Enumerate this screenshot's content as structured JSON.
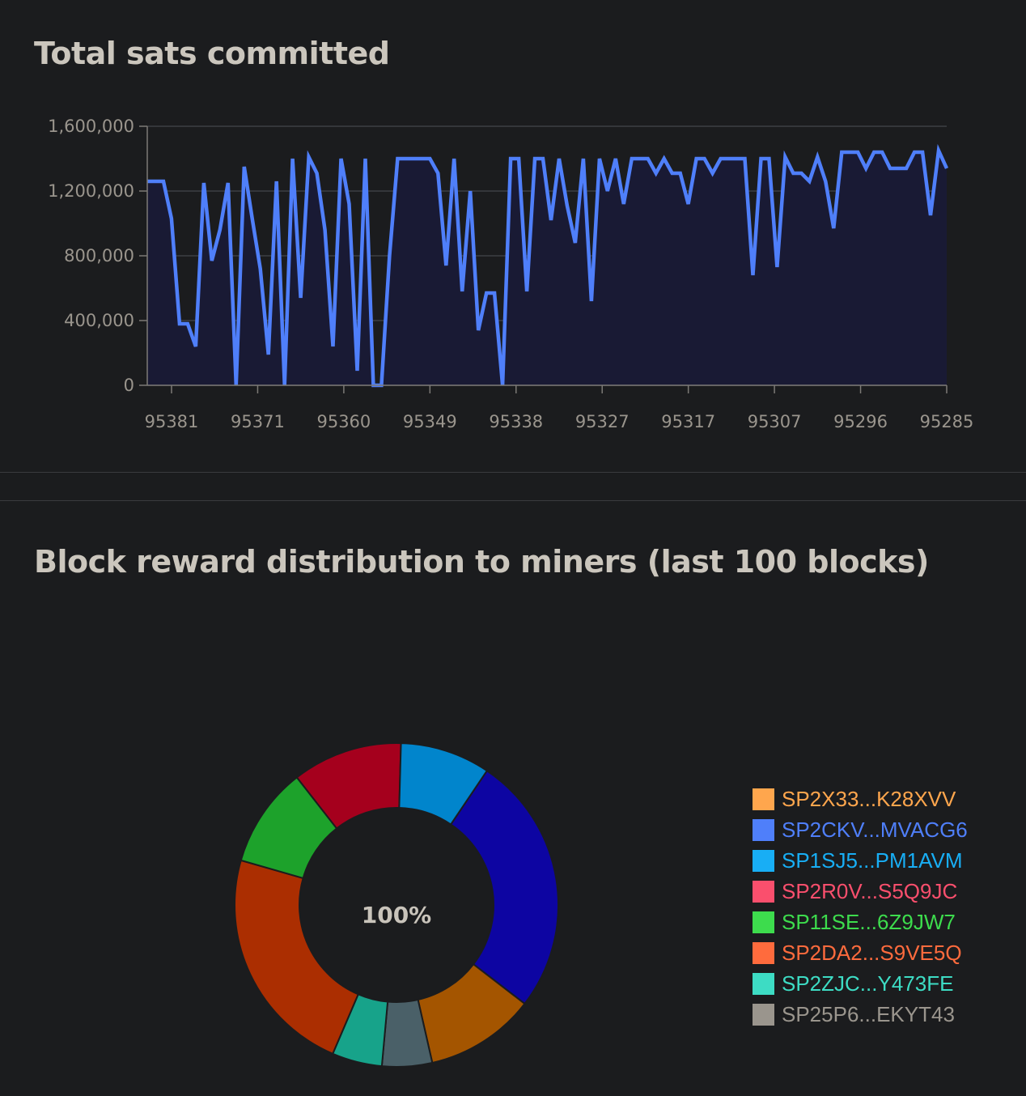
{
  "charts": [
    {
      "title": "Total sats committed",
      "chart_data": {
        "type": "area",
        "ylim": [
          0,
          1600000
        ],
        "y_ticks": [
          "0",
          "400,000",
          "800,000",
          "1,200,000",
          "1,600,000"
        ],
        "x_tick_labels": [
          "95381",
          "95371",
          "95360",
          "95349",
          "95338",
          "95327",
          "95317",
          "95307",
          "95296",
          "95285"
        ],
        "colors": {
          "line": "#4f7ffa",
          "fill": "#191a34",
          "grid": "#3d3e44"
        },
        "values": [
          1260000,
          1260000,
          1260000,
          1030000,
          380000,
          380000,
          240000,
          1250000,
          770000,
          960000,
          1250000,
          0,
          1350000,
          1030000,
          720000,
          190000,
          1260000,
          0,
          1400000,
          540000,
          1410000,
          1310000,
          960000,
          240000,
          1400000,
          1120000,
          90000,
          1400000,
          0,
          0,
          800000,
          1400000,
          1400000,
          1400000,
          1400000,
          1400000,
          1310000,
          740000,
          1400000,
          580000,
          1200000,
          340000,
          570000,
          570000,
          0,
          1400000,
          1400000,
          580000,
          1400000,
          1400000,
          1020000,
          1400000,
          1110000,
          880000,
          1400000,
          520000,
          1400000,
          1200000,
          1400000,
          1120000,
          1400000,
          1400000,
          1400000,
          1310000,
          1400000,
          1310000,
          1310000,
          1120000,
          1400000,
          1400000,
          1310000,
          1400000,
          1400000,
          1400000,
          1400000,
          680000,
          1400000,
          1400000,
          730000,
          1410000,
          1310000,
          1310000,
          1260000,
          1410000,
          1260000,
          970000,
          1440000,
          1440000,
          1440000,
          1340000,
          1440000,
          1440000,
          1340000,
          1340000,
          1340000,
          1440000,
          1440000,
          1050000,
          1450000,
          1340000
        ]
      }
    },
    {
      "title": "Block reward distribution to miners (last 100 blocks)",
      "chart_data": {
        "type": "pie",
        "center_label": "100%",
        "slices": [
          {
            "label": "SP2X33...K28XVV",
            "value": 26,
            "color": "#0d05a2",
            "legend_color": "#ffa64d"
          },
          {
            "label": "SP2CKV...MVACG6",
            "value": 11,
            "color": "#a45500",
            "legend_color": "#4f7ffa"
          },
          {
            "label": "SP1SJ5...PM1AVM",
            "value": 5,
            "color": "#4a6068",
            "legend_color": "#18aef5"
          },
          {
            "label": "SP2R0V...S5Q9JC",
            "value": 5,
            "color": "#17a38a",
            "legend_color": "#fa4f6d"
          },
          {
            "label": "SP11SE...6Z9JW7",
            "value": 23,
            "color": "#ab2e01",
            "legend_color": "#3ddc4d"
          },
          {
            "label": "SP2DA2...S9VE5Q",
            "value": 10,
            "color": "#1da22b",
            "legend_color": "#ff6b3d"
          },
          {
            "label": "SP2ZJC...Y473FE",
            "value": 11,
            "color": "#a5001d",
            "legend_color": "#3ddcc4"
          },
          {
            "label": "SP25P6...EKYT43",
            "value": 9,
            "color": "#0185cc",
            "legend_color": "#9a958d"
          }
        ]
      }
    }
  ]
}
